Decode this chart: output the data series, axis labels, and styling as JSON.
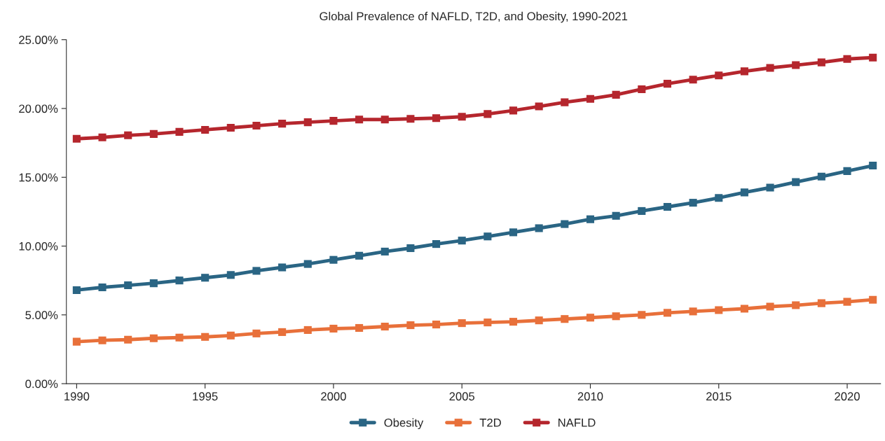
{
  "chart_data": {
    "type": "line",
    "title": "Global Prevalence of NAFLD, T2D, and Obesity, 1990-2021",
    "x": [
      1990,
      1991,
      1992,
      1993,
      1994,
      1995,
      1996,
      1997,
      1998,
      1999,
      2000,
      2001,
      2002,
      2003,
      2004,
      2005,
      2006,
      2007,
      2008,
      2009,
      2010,
      2011,
      2012,
      2013,
      2014,
      2015,
      2016,
      2017,
      2018,
      2019,
      2020,
      2021
    ],
    "series": [
      {
        "name": "Obesity",
        "color": "#2a6584",
        "values": [
          6.8,
          7.0,
          7.15,
          7.3,
          7.5,
          7.7,
          7.9,
          8.2,
          8.45,
          8.7,
          9.0,
          9.3,
          9.6,
          9.85,
          10.15,
          10.4,
          10.7,
          11.0,
          11.3,
          11.6,
          11.95,
          12.2,
          12.55,
          12.85,
          13.15,
          13.5,
          13.9,
          14.25,
          14.65,
          15.05,
          15.45,
          15.85
        ]
      },
      {
        "name": "T2D",
        "color": "#e8703a",
        "values": [
          3.05,
          3.15,
          3.2,
          3.3,
          3.35,
          3.4,
          3.5,
          3.65,
          3.75,
          3.9,
          4.0,
          4.05,
          4.15,
          4.25,
          4.3,
          4.4,
          4.45,
          4.5,
          4.6,
          4.7,
          4.8,
          4.9,
          5.0,
          5.15,
          5.25,
          5.35,
          5.45,
          5.6,
          5.7,
          5.85,
          5.95,
          6.1
        ]
      },
      {
        "name": "NAFLD",
        "color": "#b5262d",
        "values": [
          17.8,
          17.9,
          18.05,
          18.15,
          18.3,
          18.45,
          18.6,
          18.75,
          18.9,
          19.0,
          19.1,
          19.2,
          19.2,
          19.25,
          19.3,
          19.4,
          19.6,
          19.85,
          20.15,
          20.45,
          20.7,
          21.0,
          21.4,
          21.8,
          22.1,
          22.4,
          22.7,
          22.95,
          23.15,
          23.35,
          23.6,
          23.7
        ]
      }
    ],
    "xlim": [
      1989.6,
      2021.3
    ],
    "xticks": [
      1990,
      1995,
      2000,
      2005,
      2010,
      2015,
      2020
    ],
    "ylim": [
      0,
      25
    ],
    "yticks": [
      {
        "value": 0,
        "label": "0.00%"
      },
      {
        "value": 5,
        "label": "5.00%"
      },
      {
        "value": 10,
        "label": "10.00%"
      },
      {
        "value": 15,
        "label": "15.00%"
      },
      {
        "value": 20,
        "label": "20.00%"
      },
      {
        "value": 25,
        "label": "25.00%"
      }
    ],
    "grid": false,
    "legend": "bottom",
    "marker": "square",
    "line_style": "solid"
  }
}
